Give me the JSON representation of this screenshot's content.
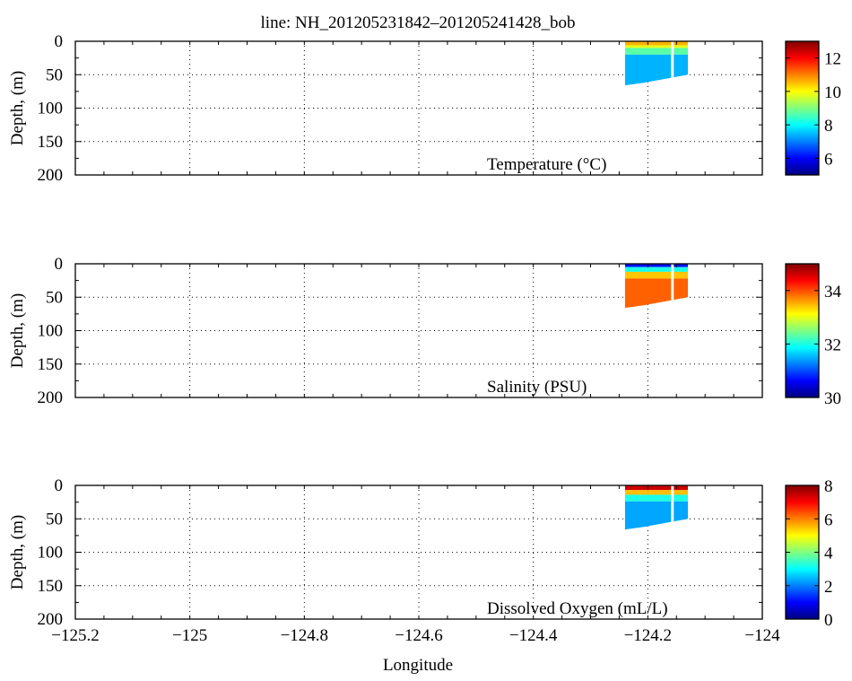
{
  "title": "line: NH_201205231842–201205241428_bob",
  "xlabel": "Longitude",
  "colormap": "jet",
  "chart_data": [
    {
      "type": "heatmap",
      "label": "Temperature (°C)",
      "ylabel": "Depth, (m)",
      "xlim": [
        -125.2,
        -124
      ],
      "ylim": [
        200,
        0
      ],
      "x_ticks": [
        "−125.2",
        "−125",
        "−124.8",
        "−124.6",
        "−124.4",
        "−124.2",
        "−124"
      ],
      "y_ticks": [
        "0",
        "50",
        "100",
        "150",
        "200"
      ],
      "grid": true,
      "colorbar": {
        "min": 5,
        "max": 13,
        "ticks": [
          "6",
          "8",
          "10",
          "12"
        ]
      },
      "data_extent": {
        "lon": [
          -124.24,
          -124.13
        ],
        "depth_max_west": 66,
        "depth_max_east": 50
      },
      "gap_lon": -124.157,
      "layers": [
        {
          "depth": [
            0,
            6
          ],
          "value": 10.6
        },
        {
          "depth": [
            6,
            10
          ],
          "value": 9.8
        },
        {
          "depth": [
            10,
            20
          ],
          "value": 8.7
        },
        {
          "depth": [
            20,
            66
          ],
          "value": 7.4
        }
      ]
    },
    {
      "type": "heatmap",
      "label": "Salinity (PSU)",
      "ylabel": "Depth, (m)",
      "xlim": [
        -125.2,
        -124
      ],
      "ylim": [
        200,
        0
      ],
      "x_ticks": [
        "−125.2",
        "−125",
        "−124.8",
        "−124.6",
        "−124.4",
        "−124.2",
        "−124"
      ],
      "y_ticks": [
        "0",
        "50",
        "100",
        "150",
        "200"
      ],
      "grid": true,
      "colorbar": {
        "min": 30,
        "max": 35,
        "ticks": [
          "30",
          "32",
          "34"
        ]
      },
      "data_extent": {
        "lon": [
          -124.24,
          -124.13
        ],
        "depth_max_west": 66,
        "depth_max_east": 50
      },
      "gap_lon": -124.157,
      "layers": [
        {
          "depth": [
            0,
            5
          ],
          "value": 30.7
        },
        {
          "depth": [
            5,
            12
          ],
          "value": 32.0
        },
        {
          "depth": [
            12,
            22
          ],
          "value": 33.4
        },
        {
          "depth": [
            22,
            66
          ],
          "value": 33.9
        }
      ]
    },
    {
      "type": "heatmap",
      "label": "Dissolved Oxygen (mL/L)",
      "ylabel": "Depth, (m)",
      "xlim": [
        -125.2,
        -124
      ],
      "ylim": [
        200,
        0
      ],
      "x_ticks": [
        "−125.2",
        "−125",
        "−124.8",
        "−124.6",
        "−124.4",
        "−124.2",
        "−124"
      ],
      "y_ticks": [
        "0",
        "50",
        "100",
        "150",
        "200"
      ],
      "grid": true,
      "colorbar": {
        "min": 0,
        "max": 8,
        "ticks": [
          "0",
          "2",
          "4",
          "6",
          "8"
        ]
      },
      "data_extent": {
        "lon": [
          -124.24,
          -124.13
        ],
        "depth_max_west": 66,
        "depth_max_east": 50
      },
      "gap_lon": -124.157,
      "layers": [
        {
          "depth": [
            0,
            7
          ],
          "value": 7.4
        },
        {
          "depth": [
            7,
            14
          ],
          "value": 5.5
        },
        {
          "depth": [
            14,
            24
          ],
          "value": 3.2
        },
        {
          "depth": [
            24,
            66
          ],
          "value": 2.3
        }
      ]
    }
  ]
}
